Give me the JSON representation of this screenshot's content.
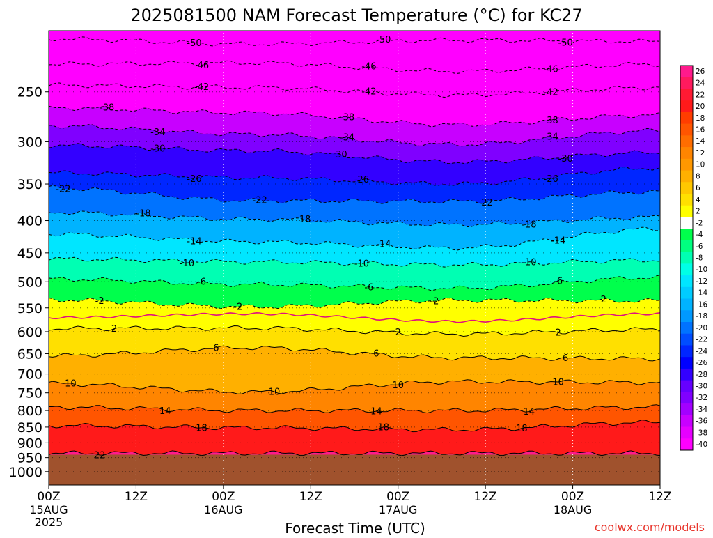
{
  "chart_data": {
    "type": "heatmap",
    "title": "2025081500 NAM Forecast Temperature (°C) for KC27",
    "xlabel": "Forecast Time (UTC)",
    "ylabel": "",
    "credit": "coolwx.com/models",
    "x_axis": {
      "range_hours": [
        0,
        84
      ],
      "ticks": [
        {
          "hour": 0,
          "label": "00Z",
          "sub": "15AUG",
          "sub2": "2025"
        },
        {
          "hour": 12,
          "label": "12Z",
          "sub": "",
          "sub2": ""
        },
        {
          "hour": 24,
          "label": "00Z",
          "sub": "16AUG",
          "sub2": ""
        },
        {
          "hour": 36,
          "label": "12Z",
          "sub": "",
          "sub2": ""
        },
        {
          "hour": 48,
          "label": "00Z",
          "sub": "17AUG",
          "sub2": ""
        },
        {
          "hour": 60,
          "label": "12Z",
          "sub": "",
          "sub2": ""
        },
        {
          "hour": 72,
          "label": "00Z",
          "sub": "18AUG",
          "sub2": ""
        },
        {
          "hour": 84,
          "label": "12Z",
          "sub": "",
          "sub2": ""
        }
      ]
    },
    "y_axis": {
      "quantity": "pressure (hPa)",
      "scale": "log",
      "range": [
        200,
        1050
      ],
      "ticks": [
        "250",
        "300",
        "350",
        "400",
        "450",
        "500",
        "550",
        "600",
        "650",
        "700",
        "750",
        "800",
        "850",
        "900",
        "950",
        "1000"
      ]
    },
    "surface_pressure_hPa": 940,
    "colorbar": {
      "labels": [
        "26",
        "24",
        "22",
        "20",
        "18",
        "16",
        "14",
        "12",
        "10",
        "8",
        "6",
        "4",
        "2",
        "-2",
        "-4",
        "-6",
        "-8",
        "-10",
        "-12",
        "-14",
        "-16",
        "-18",
        "-20",
        "-22",
        "-24",
        "-26",
        "-28",
        "-30",
        "-32",
        "-34",
        "-36",
        "-38",
        "-40"
      ],
      "colors": [
        "#ff1a8c",
        "#ff1a5e",
        "#ff1a33",
        "#ff1a1a",
        "#ff3d00",
        "#ff5500",
        "#ff6d00",
        "#ff8500",
        "#ff9800",
        "#ffb000",
        "#ffc800",
        "#ffe000",
        "#ffff00",
        "#ffffff",
        "#00ff4c",
        "#00ff80",
        "#00ffb3",
        "#00ffe6",
        "#00e6ff",
        "#00ccff",
        "#00b3ff",
        "#0099ff",
        "#0073ff",
        "#004dff",
        "#0026ff",
        "#0000ff",
        "#3300ff",
        "#6600ff",
        "#8000ff",
        "#a300ff",
        "#c800ff",
        "#e600ff",
        "#ff00ff"
      ]
    },
    "isotherms": [
      {
        "value": -50,
        "pressure": [
          206,
          210,
          207,
          208
        ],
        "labels": [
          {
            "text": "-50",
            "hour": 20
          },
          {
            "text": "-50",
            "hour": 46
          },
          {
            "text": "-50",
            "hour": 71
          }
        ]
      },
      {
        "value": -46,
        "pressure": [
          226,
          225,
          232,
          226
        ],
        "labels": [
          {
            "text": "-46",
            "hour": 21
          },
          {
            "text": "-46",
            "hour": 44
          },
          {
            "text": "-46",
            "hour": 69
          }
        ]
      },
      {
        "value": -42,
        "pressure": [
          244,
          246,
          253,
          246
        ],
        "labels": [
          {
            "text": "-42",
            "hour": 21
          },
          {
            "text": "-42",
            "hour": 44
          },
          {
            "text": "-42",
            "hour": 69
          }
        ]
      },
      {
        "value": -38,
        "pressure": [
          265,
          270,
          282,
          272
        ],
        "labels": [
          {
            "text": "-38",
            "hour": 8
          },
          {
            "text": "-38",
            "hour": 41
          },
          {
            "text": "-38",
            "hour": 69
          }
        ]
      },
      {
        "value": -34,
        "pressure": [
          283,
          292,
          303,
          288
        ],
        "labels": [
          {
            "text": "-34",
            "hour": 15
          },
          {
            "text": "-34",
            "hour": 41
          },
          {
            "text": "-34",
            "hour": 69
          }
        ]
      },
      {
        "value": -30,
        "pressure": [
          304,
          310,
          323,
          312
        ],
        "labels": [
          {
            "text": "-30",
            "hour": 15
          },
          {
            "text": "-30",
            "hour": 40
          },
          {
            "text": "-30",
            "hour": 71
          }
        ]
      },
      {
        "value": -26,
        "pressure": [
          336,
          342,
          350,
          330
        ],
        "labels": [
          {
            "text": "-26",
            "hour": 20
          },
          {
            "text": "-26",
            "hour": 43
          },
          {
            "text": "-26",
            "hour": 69
          }
        ]
      },
      {
        "value": -22,
        "pressure": [
          355,
          372,
          373,
          360
        ],
        "labels": [
          {
            "text": "-22",
            "hour": 2
          },
          {
            "text": "-22",
            "hour": 29
          },
          {
            "text": "-22",
            "hour": 60
          }
        ]
      },
      {
        "value": -18,
        "pressure": [
          388,
          398,
          406,
          395
        ],
        "labels": [
          {
            "text": "-18",
            "hour": 13
          },
          {
            "text": "-18",
            "hour": 35
          },
          {
            "text": "-18",
            "hour": 66
          }
        ]
      },
      {
        "value": -14,
        "pressure": [
          420,
          432,
          442,
          412
        ],
        "labels": [
          {
            "text": "-14",
            "hour": 20
          },
          {
            "text": "-14",
            "hour": 46
          },
          {
            "text": "-14",
            "hour": 70
          }
        ]
      },
      {
        "value": -10,
        "pressure": [
          460,
          465,
          470,
          462
        ],
        "labels": [
          {
            "text": "-10",
            "hour": 19
          },
          {
            "text": "-10",
            "hour": 43
          },
          {
            "text": "-10",
            "hour": 66
          }
        ]
      },
      {
        "value": -6,
        "pressure": [
          495,
          505,
          512,
          492
        ],
        "labels": [
          {
            "text": "-6",
            "hour": 21
          },
          {
            "text": "-6",
            "hour": 44
          },
          {
            "text": "-6",
            "hour": 70
          }
        ]
      },
      {
        "value": -2,
        "pressure": [
          534,
          548,
          535,
          536
        ],
        "labels": [
          {
            "text": "-2",
            "hour": 7
          },
          {
            "text": "-2",
            "hour": 26
          },
          {
            "text": "-2",
            "hour": 53
          },
          {
            "text": "-2",
            "hour": 76
          }
        ]
      },
      {
        "value": 2,
        "pressure": [
          593,
          592,
          605,
          595
        ],
        "labels": [
          {
            "text": "2",
            "hour": 9
          },
          {
            "text": "2",
            "hour": 48
          },
          {
            "text": "2",
            "hour": 70
          }
        ]
      },
      {
        "value": 6,
        "pressure": [
          655,
          636,
          660,
          662
        ],
        "labels": [
          {
            "text": "6",
            "hour": 23
          },
          {
            "text": "6",
            "hour": 45
          },
          {
            "text": "6",
            "hour": 71
          }
        ]
      },
      {
        "value": 10,
        "pressure": [
          725,
          748,
          720,
          722
        ],
        "labels": [
          {
            "text": "10",
            "hour": 3
          },
          {
            "text": "10",
            "hour": 31
          },
          {
            "text": "10",
            "hour": 48
          },
          {
            "text": "10",
            "hour": 70
          }
        ]
      },
      {
        "value": 14,
        "pressure": [
          790,
          800,
          800,
          790
        ],
        "labels": [
          {
            "text": "14",
            "hour": 16
          },
          {
            "text": "14",
            "hour": 45
          },
          {
            "text": "14",
            "hour": 66
          }
        ]
      },
      {
        "value": 18,
        "pressure": [
          845,
          852,
          858,
          835
        ],
        "labels": [
          {
            "text": "18",
            "hour": 21
          },
          {
            "text": "18",
            "hour": 46
          },
          {
            "text": "18",
            "hour": 65
          }
        ]
      },
      {
        "value": 22,
        "pressure": [
          935,
          935,
          935,
          935
        ],
        "labels": [
          {
            "text": "22",
            "hour": 7
          }
        ]
      }
    ],
    "freezing_line_pressure": [
      570,
      562,
      578,
      562
    ],
    "grid": true
  }
}
